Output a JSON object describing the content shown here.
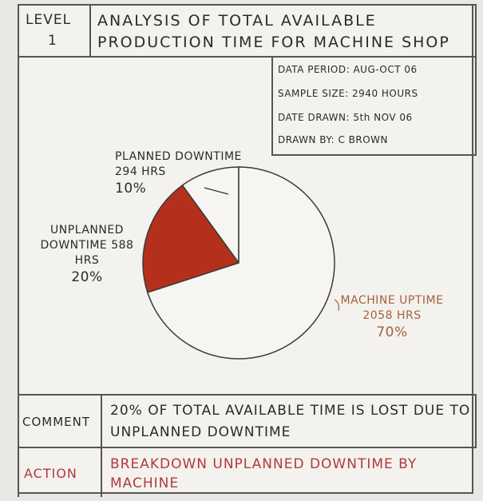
{
  "header": {
    "level_label": "LEVEL",
    "level_number": "1"
  },
  "info": {
    "data_period": "DATA PERIOD: AUG-OCT 06",
    "sample_size": "SAMPLE SIZE: 2940 HOURS",
    "date_drawn": "DATE DRAWN: 5th NOV 06",
    "drawn_by": "DRAWN BY: C BROWN"
  },
  "chart_data": {
    "type": "pie",
    "title": "ANALYSIS OF TOTAL AVAILABLE PRODUCTION TIME FOR MACHINE SHOP",
    "categories": [
      "PLANNED DOWNTIME",
      "UNPLANNED DOWNTIME",
      "MACHINE UPTIME"
    ],
    "values": [
      10,
      20,
      70
    ],
    "value_labels": [
      "10%",
      "20%",
      "70%"
    ],
    "hours_labels": [
      "294 HRS",
      "588 HRS",
      "2058 HRS"
    ],
    "colors": [
      "#f6f5f1",
      "#b5301c",
      "#f6f5f1"
    ],
    "label_colors": [
      "#2a2a2e",
      "#2a2a2e",
      "#a4623c"
    ]
  },
  "comment": {
    "label": "COMMENT",
    "text": "20% OF TOTAL AVAILABLE TIME IS LOST DUE TO UNPLANNED DOWNTIME"
  },
  "action": {
    "label": "ACTION",
    "text": "BREAKDOWN UNPLANNED DOWNTIME BY MACHINE"
  }
}
